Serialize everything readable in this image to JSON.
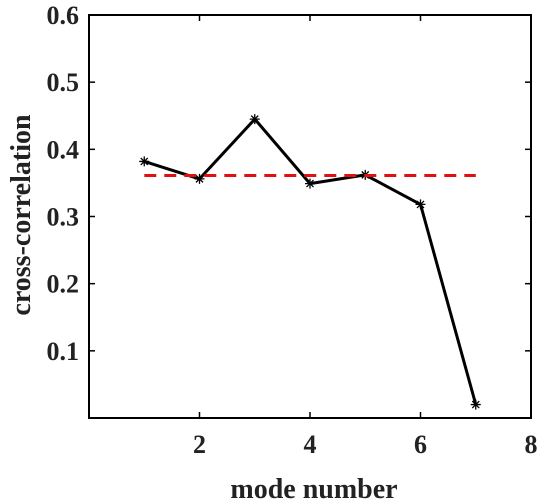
{
  "chart_data": {
    "type": "line",
    "xlabel": "mode number",
    "ylabel": "cross-correlation",
    "xlim": [
      0,
      8
    ],
    "ylim": [
      0,
      0.6
    ],
    "xticks": [
      2,
      4,
      6,
      8
    ],
    "yticks": [
      0.1,
      0.2,
      0.3,
      0.4,
      0.5,
      0.6
    ],
    "grid": false,
    "series": [
      {
        "style": "solid line with star markers",
        "color": "#000000",
        "x": [
          1,
          2,
          3,
          4,
          5,
          6,
          7
        ],
        "y": [
          0.382,
          0.356,
          0.445,
          0.349,
          0.362,
          0.318,
          0.02
        ]
      },
      {
        "style": "dashed line",
        "color": "#e01010",
        "x": [
          1,
          7
        ],
        "y": [
          0.361,
          0.361
        ]
      }
    ]
  }
}
